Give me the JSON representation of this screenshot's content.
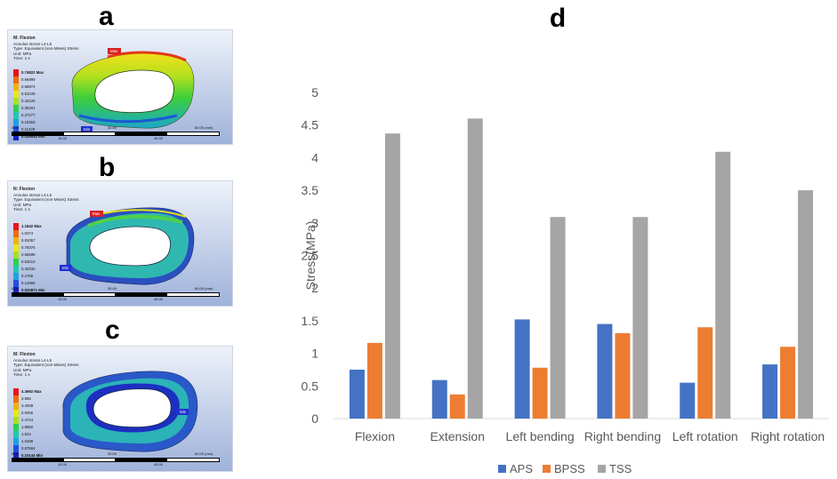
{
  "panels": {
    "a": {
      "label": "a",
      "title": "M: Flexion",
      "line2": "Annulus stress L4-L5",
      "line3": "Type: Equivalent (von-Mises) Stress",
      "line4": "Unit: MPa",
      "line5": "Time: 1 s",
      "legend": [
        "0.74822 Max",
        "0.66999",
        "0.58974",
        "0.51049",
        "0.43125",
        "0.35201",
        "0.27277",
        "0.19353",
        "0.11429",
        "0.035044 Min"
      ],
      "scale_ticks": [
        "0.00",
        "30.00",
        "60.00 (mm)",
        "15.00",
        "45.00"
      ],
      "max_tag": "Max",
      "min_tag": "Min"
    },
    "b": {
      "label": "b",
      "title": "N: Flexion",
      "line2": "Annulus stress L4-L5",
      "line3": "Type: Equivalent (von-Mises) Stress",
      "line4": "Unit: MPa",
      "line5": "Time: 1 s",
      "legend": [
        "1.1642 Max",
        "1.0374",
        "0.91057",
        "0.78376",
        "0.65695",
        "0.53013",
        "0.40332",
        "0.2765",
        "0.14969",
        "0.022871 Min"
      ],
      "scale_ticks": [
        "0.00",
        "30.00",
        "60.00 (mm)",
        "15.00",
        "45.00"
      ],
      "max_tag": "Max",
      "min_tag": "Min"
    },
    "c": {
      "label": "c",
      "title": "M: Flexion",
      "line2": "Annulus stress L4-L5",
      "line3": "Type: Equivalent (von-Mises) Stress",
      "line4": "Unit: MPa",
      "line5": "Time: 1 s",
      "legend": [
        "4.3692 Max",
        "3.885",
        "3.4009",
        "2.9466",
        "2.4724",
        "1.9882",
        "1.524",
        "1.0498",
        "0.57564",
        "0.10144 Min"
      ],
      "scale_ticks": [
        "0.00",
        "30.00",
        "60.00 (mm)",
        "15.00",
        "45.00"
      ],
      "max_tag": "Max",
      "min_tag": "Min"
    }
  },
  "chart_data": {
    "type": "bar",
    "panel_label": "d",
    "categories": [
      "Flexion",
      "Extension",
      "Left bending",
      "Right bending",
      "Left rotation",
      "Right rotation"
    ],
    "series": [
      {
        "name": "APS",
        "color": "#4472C4",
        "values": [
          0.75,
          0.59,
          1.52,
          1.45,
          0.55,
          0.83
        ]
      },
      {
        "name": "BPSS",
        "color": "#ED7D31",
        "values": [
          1.16,
          0.37,
          0.78,
          1.31,
          1.4,
          1.1
        ]
      },
      {
        "name": "TSS",
        "color": "#A5A5A5",
        "values": [
          4.37,
          4.6,
          3.09,
          3.09,
          4.09,
          3.5
        ]
      }
    ],
    "yticks": [
      "0",
      "0.5",
      "1",
      "1.5",
      "2",
      "2.5",
      "3",
      "3.5",
      "4",
      "4.5",
      "5"
    ],
    "ylim": [
      0,
      5
    ],
    "ylabel": "Stress(MPa)",
    "xlabel": "",
    "grid": false,
    "legend_position": "bottom"
  }
}
